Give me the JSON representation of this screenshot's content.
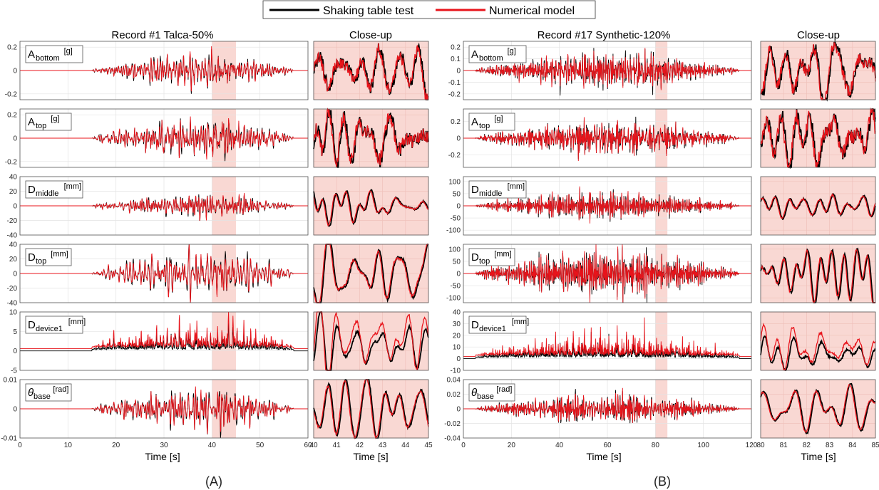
{
  "legend": [
    {
      "label": "Shaking table test",
      "color": "#000000"
    },
    {
      "label": "Numerical model",
      "color": "#e8141b"
    }
  ],
  "panel_labels": [
    "(A)",
    "(B)"
  ],
  "groups": [
    {
      "title": "Record #1 Talca-50%",
      "closeup_title": "Close-up",
      "xlabel": "Time [s]",
      "closeup_xlabel": "Time [s]",
      "xlim": [
        0,
        60
      ],
      "x_ticks": [
        "0",
        "10",
        "20",
        "30",
        "40",
        "50",
        "60"
      ],
      "highlight_window": [
        40,
        45
      ],
      "closeup_xlim": [
        40,
        45
      ],
      "closeup_ticks": [
        "40",
        "41",
        "42",
        "43",
        "44",
        "45"
      ],
      "activity_window": [
        15,
        57
      ],
      "activity_peak": 40
    },
    {
      "title": "Record #17 Synthetic-120%",
      "closeup_title": "Close-up",
      "xlabel": "Time [s]",
      "closeup_xlabel": "Time [s]",
      "xlim": [
        0,
        120
      ],
      "x_ticks": [
        "0",
        "20",
        "40",
        "60",
        "80",
        "100",
        "120"
      ],
      "highlight_window": [
        80,
        85
      ],
      "closeup_xlim": [
        80,
        85
      ],
      "closeup_ticks": [
        "80",
        "81",
        "82",
        "83",
        "84",
        "85"
      ],
      "activity_window": [
        5,
        115
      ],
      "activity_peak": 60
    }
  ],
  "rows": [
    {
      "channel": {
        "main": "A",
        "sub": "bottom",
        "unit": "[g]",
        "greek": false
      },
      "A": {
        "ylim": [
          -0.25,
          0.25
        ],
        "ticks": [
          "0.2",
          "0",
          "-0.2"
        ],
        "tick_values": [
          0.2,
          0,
          -0.2
        ],
        "amp": 0.11
      },
      "B": {
        "ylim": [
          -0.25,
          0.25
        ],
        "ticks": [
          "0.2",
          "0.1",
          "0",
          "-0.1",
          "-0.2"
        ],
        "tick_values": [
          0.2,
          0.1,
          0,
          -0.1,
          -0.2
        ],
        "amp": 0.12
      }
    },
    {
      "channel": {
        "main": "A",
        "sub": "top",
        "unit": "[g]",
        "greek": false
      },
      "A": {
        "ylim": [
          -0.25,
          0.25
        ],
        "ticks": [
          "0.2",
          "0",
          "-0.2"
        ],
        "tick_values": [
          0.2,
          0,
          -0.2
        ],
        "amp": 0.14
      },
      "B": {
        "ylim": [
          -0.35,
          0.35
        ],
        "ticks": [
          "0.2",
          "0",
          "-0.2"
        ],
        "tick_values": [
          0.2,
          0,
          -0.2
        ],
        "amp": 0.2
      }
    },
    {
      "channel": {
        "main": "D",
        "sub": "middle",
        "unit": "[mm]",
        "greek": false
      },
      "A": {
        "ylim": [
          -40,
          40
        ],
        "ticks": [
          "40",
          "20",
          "0",
          "-20",
          "-40"
        ],
        "tick_values": [
          40,
          20,
          0,
          -20,
          -40
        ],
        "amp": 13
      },
      "B": {
        "ylim": [
          -120,
          120
        ],
        "ticks": [
          "100",
          "50",
          "0",
          "-50",
          "-100"
        ],
        "tick_values": [
          100,
          50,
          0,
          -50,
          -100
        ],
        "amp": 40
      }
    },
    {
      "channel": {
        "main": "D",
        "sub": "top",
        "unit": "[mm]",
        "greek": false
      },
      "A": {
        "ylim": [
          -40,
          40
        ],
        "ticks": [
          "40",
          "20",
          "0",
          "-20",
          "-40"
        ],
        "tick_values": [
          40,
          20,
          0,
          -20,
          -40
        ],
        "amp": 24
      },
      "B": {
        "ylim": [
          -120,
          120
        ],
        "ticks": [
          "100",
          "50",
          "0",
          "-50",
          "-100"
        ],
        "tick_values": [
          100,
          50,
          0,
          -50,
          -100
        ],
        "amp": 70
      }
    },
    {
      "channel": {
        "main": "D",
        "sub": "device1",
        "unit": "[mm]",
        "greek": false
      },
      "A": {
        "ylim": [
          -5,
          10
        ],
        "ticks": [
          "10",
          "5",
          "0",
          "-5"
        ],
        "tick_values": [
          10,
          5,
          0,
          -5
        ],
        "amp": 4,
        "bias": 0.4
      },
      "B": {
        "ylim": [
          -10,
          40
        ],
        "ticks": [
          "40",
          "30",
          "20",
          "10",
          "0",
          "-10"
        ],
        "tick_values": [
          40,
          30,
          20,
          10,
          0,
          -10
        ],
        "amp": 12,
        "bias": 0.4
      }
    },
    {
      "channel": {
        "main": "θ",
        "sub": "base",
        "unit": "[rad]",
        "greek": true
      },
      "A": {
        "ylim": [
          -0.01,
          0.01
        ],
        "ticks": [
          "0.01",
          "0",
          "-0.01"
        ],
        "tick_values": [
          0.01,
          0,
          -0.01
        ],
        "amp": 0.0055
      },
      "B": {
        "ylim": [
          -0.04,
          0.04
        ],
        "ticks": [
          "0.04",
          "0.02",
          "0",
          "-0.02",
          "-0.04"
        ],
        "tick_values": [
          0.04,
          0.02,
          0,
          -0.02,
          -0.04
        ],
        "amp": 0.015
      }
    }
  ],
  "chart_data": {
    "type": "line",
    "series": [
      {
        "name": "Shaking table test"
      },
      {
        "name": "Numerical model"
      }
    ],
    "title_A": "Record #1 Talca-50%",
    "title_B": "Record #17 Synthetic-120%",
    "xlabel": "Time [s]",
    "grid": true,
    "legend_position": "top-center"
  }
}
